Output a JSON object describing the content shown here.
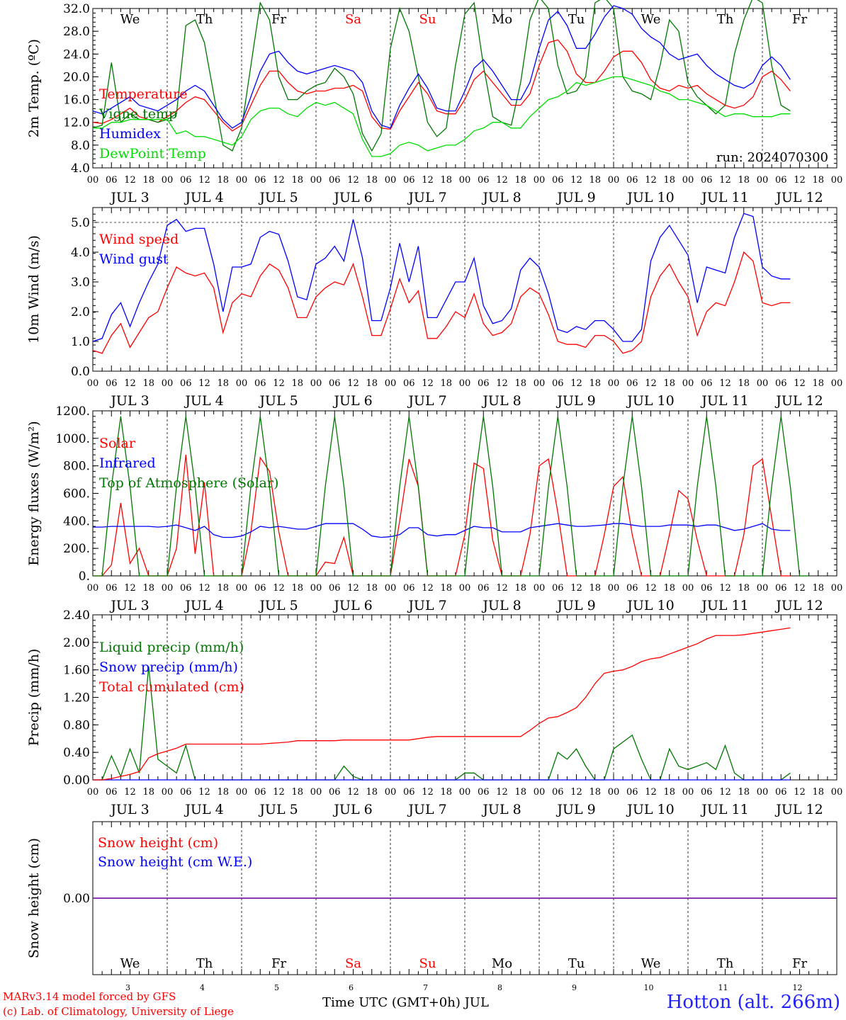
{
  "colors": {
    "red": "#ff0000",
    "blue": "#0000ff",
    "green": "#007700",
    "lime": "#00dd00",
    "purple": "#7a1fa2",
    "weekend": "#ff0000"
  },
  "time_axis": {
    "days": [
      "JUL  3",
      "JUL  4",
      "JUL  5",
      "JUL  6",
      "JUL  7",
      "JUL  8",
      "JUL  9",
      "JUL 10",
      "JUL 11",
      "JUL 12"
    ],
    "hour_ticks": [
      "00",
      "06",
      "12",
      "18"
    ],
    "last_tick": "00",
    "weekdays": [
      "We",
      "Th",
      "Fr",
      "Sa",
      "Su",
      "Mo",
      "Tu",
      "We",
      "Th",
      "Fr"
    ],
    "weekend_days": [
      "Sa",
      "Su"
    ],
    "day_numbers": [
      "3",
      "4",
      "5",
      "6",
      "7",
      "8",
      "9",
      "10",
      "11",
      "12"
    ]
  },
  "chart_data": [
    {
      "type": "line",
      "ylabel": "2m Temp. (ºC)",
      "ylim": [
        4.0,
        32.0
      ],
      "yticks": [
        "4.0",
        "8.0",
        "12.0",
        "16.0",
        "20.0",
        "24.0",
        "28.0",
        "32.0"
      ],
      "annotation": "run: 2024070300",
      "x_unit": "hours since JUL 3 00 UTC, 3-hourly",
      "series": [
        {
          "name": "Temperature",
          "color": "#ff0000",
          "values": [
            12.0,
            11.8,
            12.5,
            13.5,
            14.5,
            13.0,
            12.5,
            12.0,
            13.0,
            14.0,
            15.5,
            16.5,
            16.0,
            14.0,
            12.0,
            10.5,
            11.5,
            15.0,
            18.5,
            21.0,
            21.0,
            19.0,
            17.5,
            17.0,
            17.5,
            17.5,
            18.0,
            18.0,
            18.5,
            17.5,
            13.0,
            11.0,
            10.8,
            14.0,
            16.5,
            19.0,
            17.0,
            14.0,
            13.5,
            13.5,
            16.0,
            19.5,
            21.0,
            19.0,
            17.0,
            15.0,
            15.0,
            17.0,
            22.0,
            26.0,
            26.5,
            24.5,
            20.5,
            19.0,
            19.0,
            21.0,
            23.5,
            24.5,
            24.5,
            22.5,
            19.5,
            18.0,
            17.5,
            18.5,
            18.0,
            18.5,
            17.0,
            16.0,
            15.0,
            14.5,
            15.0,
            16.5,
            20.0,
            21.0,
            19.5,
            17.5
          ]
        },
        {
          "name": "Vigne temp",
          "color": "#007700",
          "values": [
            11.0,
            11.5,
            22.5,
            12.0,
            13.5,
            12.5,
            12.5,
            12.0,
            12.5,
            13.5,
            29.0,
            30.0,
            26.0,
            17.0,
            8.0,
            7.0,
            11.0,
            22.0,
            33.0,
            30.0,
            20.0,
            16.0,
            16.0,
            17.5,
            18.5,
            19.0,
            21.5,
            20.0,
            17.0,
            10.0,
            7.0,
            10.0,
            25.0,
            32.0,
            28.0,
            20.0,
            12.0,
            9.5,
            11.0,
            22.0,
            31.0,
            33.0,
            22.0,
            13.0,
            12.0,
            11.5,
            19.0,
            30.0,
            34.0,
            32.0,
            22.0,
            17.0,
            17.5,
            20.0,
            33.0,
            34.0,
            32.0,
            20.0,
            17.5,
            17.0,
            16.0,
            22.0,
            30.0,
            28.0,
            19.0,
            16.5,
            15.0,
            13.5,
            15.0,
            24.0,
            30.0,
            34.0,
            33.0,
            22.0,
            15.0,
            14.0
          ]
        },
        {
          "name": "Humidex",
          "color": "#0000ff",
          "values": [
            14.0,
            13.5,
            14.5,
            15.5,
            16.5,
            15.0,
            14.5,
            14.0,
            15.0,
            16.0,
            17.5,
            18.5,
            17.5,
            15.0,
            12.5,
            11.0,
            12.0,
            16.5,
            21.0,
            24.0,
            24.5,
            22.5,
            21.0,
            20.5,
            21.0,
            21.5,
            22.0,
            21.5,
            21.0,
            19.0,
            14.0,
            11.5,
            11.0,
            15.0,
            18.0,
            20.5,
            18.0,
            14.5,
            14.0,
            14.0,
            17.5,
            21.5,
            23.0,
            21.0,
            18.5,
            16.0,
            16.0,
            19.0,
            25.0,
            30.0,
            31.5,
            29.0,
            25.0,
            25.0,
            27.5,
            30.5,
            32.5,
            32.0,
            31.0,
            28.5,
            27.0,
            26.0,
            24.0,
            23.0,
            23.5,
            24.0,
            22.0,
            20.5,
            19.5,
            18.5,
            18.0,
            19.0,
            22.0,
            23.5,
            22.0,
            19.5
          ]
        },
        {
          "name": "DewPoint Temp",
          "color": "#00dd00",
          "values": [
            11.0,
            11.0,
            12.0,
            12.0,
            12.5,
            12.5,
            12.5,
            12.5,
            12.5,
            10.0,
            10.5,
            9.5,
            9.5,
            9.0,
            8.5,
            8.0,
            9.5,
            12.5,
            14.0,
            14.5,
            14.5,
            13.5,
            13.0,
            14.5,
            15.5,
            15.0,
            15.5,
            14.5,
            13.5,
            9.0,
            6.0,
            6.0,
            6.5,
            8.0,
            8.5,
            8.0,
            7.0,
            7.5,
            8.0,
            8.0,
            9.0,
            10.5,
            11.0,
            12.0,
            12.0,
            11.0,
            11.0,
            13.0,
            14.5,
            16.0,
            16.5,
            17.5,
            19.0,
            18.5,
            19.0,
            19.5,
            20.0,
            20.0,
            19.5,
            19.0,
            18.5,
            17.5,
            17.0,
            16.0,
            16.0,
            15.5,
            15.0,
            14.0,
            13.0,
            13.5,
            13.5,
            13.0,
            13.0,
            13.0,
            13.5,
            13.5
          ]
        }
      ]
    },
    {
      "type": "line",
      "ylabel": "10m Wind (m/s)",
      "ylim": [
        0.0,
        5.5
      ],
      "yticks": [
        "0.0",
        "1.0",
        "2.0",
        "3.0",
        "4.0",
        "5.0"
      ],
      "dashed_reference": 5.0,
      "series": [
        {
          "name": "Wind speed",
          "color": "#ff0000",
          "values": [
            0.7,
            0.6,
            1.2,
            1.6,
            0.8,
            1.3,
            1.8,
            2.0,
            2.8,
            3.5,
            3.3,
            3.2,
            3.3,
            2.8,
            1.3,
            2.3,
            2.6,
            2.5,
            3.2,
            3.6,
            3.4,
            2.8,
            1.8,
            1.8,
            2.5,
            2.8,
            3.0,
            2.9,
            3.6,
            2.5,
            1.2,
            1.2,
            2.1,
            3.1,
            2.3,
            2.7,
            1.1,
            1.1,
            1.5,
            2.0,
            1.8,
            2.6,
            1.6,
            1.2,
            1.3,
            1.6,
            2.5,
            2.8,
            2.6,
            1.9,
            1.0,
            0.9,
            0.9,
            0.8,
            1.2,
            1.2,
            1.0,
            0.6,
            0.7,
            1.0,
            2.5,
            3.2,
            3.6,
            3.0,
            2.5,
            1.2,
            2.0,
            2.3,
            2.2,
            3.0,
            4.0,
            3.7,
            2.3,
            2.2,
            2.3,
            2.3
          ]
        },
        {
          "name": "Wind gust",
          "color": "#0000ff",
          "values": [
            1.0,
            1.1,
            1.9,
            2.3,
            1.5,
            2.3,
            3.0,
            3.6,
            4.9,
            5.1,
            4.7,
            4.8,
            4.8,
            3.6,
            2.0,
            3.5,
            3.5,
            3.6,
            4.5,
            4.7,
            4.6,
            3.7,
            2.5,
            2.4,
            3.6,
            3.8,
            4.2,
            3.7,
            5.1,
            3.8,
            1.7,
            1.7,
            2.8,
            4.3,
            3.0,
            4.2,
            1.8,
            1.8,
            2.4,
            3.0,
            3.0,
            3.8,
            2.2,
            1.6,
            1.7,
            2.1,
            3.4,
            3.8,
            3.5,
            2.6,
            1.4,
            1.3,
            1.5,
            1.4,
            1.7,
            1.7,
            1.4,
            1.0,
            1.0,
            1.4,
            3.7,
            4.5,
            4.9,
            4.4,
            3.9,
            2.3,
            3.5,
            3.4,
            3.3,
            4.5,
            5.3,
            5.2,
            3.5,
            3.2,
            3.1,
            3.1
          ]
        }
      ]
    },
    {
      "type": "line",
      "ylabel": "Energy fluxes (W/m²)",
      "ylim": [
        0,
        1200
      ],
      "yticks": [
        "0.",
        "200.",
        "400.",
        "600.",
        "800.",
        "1000.",
        "1200."
      ],
      "series": [
        {
          "name": "Solar",
          "color": "#ff0000",
          "values": [
            0,
            0,
            80,
            530,
            90,
            200,
            0,
            0,
            0,
            200,
            880,
            160,
            680,
            0,
            0,
            0,
            0,
            320,
            860,
            760,
            320,
            0,
            0,
            0,
            0,
            100,
            90,
            280,
            0,
            0,
            0,
            0,
            0,
            400,
            850,
            650,
            0,
            0,
            0,
            0,
            300,
            820,
            780,
            260,
            0,
            0,
            0,
            300,
            800,
            850,
            460,
            0,
            0,
            0,
            0,
            300,
            650,
            720,
            300,
            0,
            0,
            0,
            300,
            620,
            560,
            260,
            0,
            0,
            0,
            0,
            300,
            800,
            850,
            420,
            0,
            0
          ]
        },
        {
          "name": "Infrared",
          "color": "#0000ff",
          "values": [
            355,
            355,
            360,
            360,
            360,
            360,
            360,
            355,
            360,
            370,
            350,
            330,
            360,
            300,
            280,
            280,
            290,
            320,
            360,
            350,
            360,
            350,
            340,
            340,
            360,
            380,
            380,
            380,
            380,
            340,
            290,
            280,
            285,
            300,
            350,
            350,
            300,
            290,
            300,
            300,
            330,
            360,
            350,
            350,
            320,
            320,
            320,
            350,
            360,
            370,
            380,
            370,
            360,
            360,
            365,
            370,
            380,
            380,
            370,
            360,
            360,
            360,
            370,
            370,
            370,
            360,
            370,
            370,
            350,
            330,
            340,
            360,
            380,
            340,
            330,
            330
          ]
        },
        {
          "name": "Top of Atmosphere (Solar)",
          "color": "#007700",
          "values": [
            0,
            0,
            650,
            1160,
            650,
            0,
            0,
            0,
            0,
            650,
            1160,
            650,
            0,
            0,
            0,
            0,
            0,
            650,
            1160,
            650,
            0,
            0,
            0,
            0,
            0,
            650,
            1160,
            650,
            0,
            0,
            0,
            0,
            0,
            650,
            1160,
            650,
            0,
            0,
            0,
            0,
            0,
            650,
            1160,
            650,
            0,
            0,
            0,
            0,
            0,
            650,
            1160,
            650,
            0,
            0,
            0,
            0,
            0,
            650,
            1160,
            650,
            0,
            0,
            0,
            0,
            0,
            650,
            1160,
            650,
            0,
            0,
            0,
            0,
            0,
            650,
            1160,
            650,
            0,
            0
          ]
        }
      ]
    },
    {
      "type": "line",
      "ylabel": "Precip (mm/h)",
      "ylim": [
        0.0,
        2.4
      ],
      "yticks": [
        "0.00",
        "0.40",
        "0.80",
        "1.20",
        "1.60",
        "2.00",
        "2.40"
      ],
      "series": [
        {
          "name": "Liquid precip (mm/h)",
          "color": "#007700",
          "values": [
            0,
            0,
            0.35,
            0.05,
            0.45,
            0.1,
            1.65,
            0.3,
            0.2,
            0.1,
            0.5,
            0,
            0,
            0,
            0,
            0,
            0,
            0,
            0,
            0,
            0,
            0,
            0,
            0,
            0,
            0,
            0,
            0.2,
            0.05,
            0,
            0,
            0,
            0,
            0,
            0,
            0,
            0,
            0,
            0,
            0,
            0.1,
            0.1,
            0,
            0,
            0,
            0,
            0,
            0,
            0,
            0,
            0.4,
            0.3,
            0.45,
            0.2,
            0,
            0,
            0.45,
            0.55,
            0.65,
            0.3,
            0,
            0,
            0.45,
            0.2,
            0.15,
            0.2,
            0.25,
            0.15,
            0.5,
            0.1,
            0,
            0,
            0,
            0,
            0,
            0.1
          ]
        },
        {
          "name": "Snow precip (mm/h)",
          "color": "#0000ff",
          "values": [
            0,
            0,
            0,
            0,
            0,
            0,
            0,
            0,
            0,
            0,
            0,
            0,
            0,
            0,
            0,
            0,
            0,
            0,
            0,
            0,
            0,
            0,
            0,
            0,
            0,
            0,
            0,
            0,
            0,
            0,
            0,
            0,
            0,
            0,
            0,
            0,
            0,
            0,
            0,
            0,
            0,
            0,
            0,
            0,
            0,
            0,
            0,
            0,
            0,
            0,
            0,
            0,
            0,
            0,
            0,
            0,
            0,
            0,
            0,
            0,
            0,
            0,
            0,
            0,
            0,
            0,
            0,
            0,
            0,
            0,
            0,
            0,
            0,
            0,
            0,
            0
          ]
        },
        {
          "name": "Total cumulated (cm)",
          "color": "#ff0000",
          "values": [
            0,
            0,
            0.02,
            0.05,
            0.08,
            0.12,
            0.32,
            0.38,
            0.42,
            0.46,
            0.52,
            0.52,
            0.52,
            0.52,
            0.52,
            0.52,
            0.52,
            0.52,
            0.52,
            0.53,
            0.54,
            0.55,
            0.57,
            0.57,
            0.57,
            0.57,
            0.57,
            0.58,
            0.58,
            0.58,
            0.58,
            0.58,
            0.58,
            0.58,
            0.58,
            0.6,
            0.62,
            0.63,
            0.63,
            0.63,
            0.63,
            0.63,
            0.63,
            0.63,
            0.63,
            0.63,
            0.63,
            0.72,
            0.82,
            0.9,
            0.92,
            0.98,
            1.05,
            1.2,
            1.4,
            1.55,
            1.58,
            1.6,
            1.65,
            1.72,
            1.76,
            1.78,
            1.83,
            1.88,
            1.93,
            1.98,
            2.05,
            2.1,
            2.1,
            2.1,
            2.11,
            2.13,
            2.15,
            2.17,
            2.19,
            2.21
          ]
        }
      ]
    },
    {
      "type": "line",
      "ylabel": "Snow height (cm)",
      "ylim": [
        -1,
        1
      ],
      "yticks": [
        "0.00"
      ],
      "series": [
        {
          "name": "Snow height (cm)",
          "color": "#ff0000",
          "values": [
            0,
            0
          ]
        },
        {
          "name": "Snow height (cm W.E.)",
          "color": "#0000ff",
          "values": [
            0,
            0
          ]
        }
      ]
    }
  ],
  "footer": {
    "credit_1": "MARv3.14 model forced by GFS",
    "credit_2": "(c) Lab. of Climatology, University of Liege",
    "xlabel": "Time UTC (GMT+0h) JUL",
    "station": "Hotton (alt. 266m)"
  }
}
